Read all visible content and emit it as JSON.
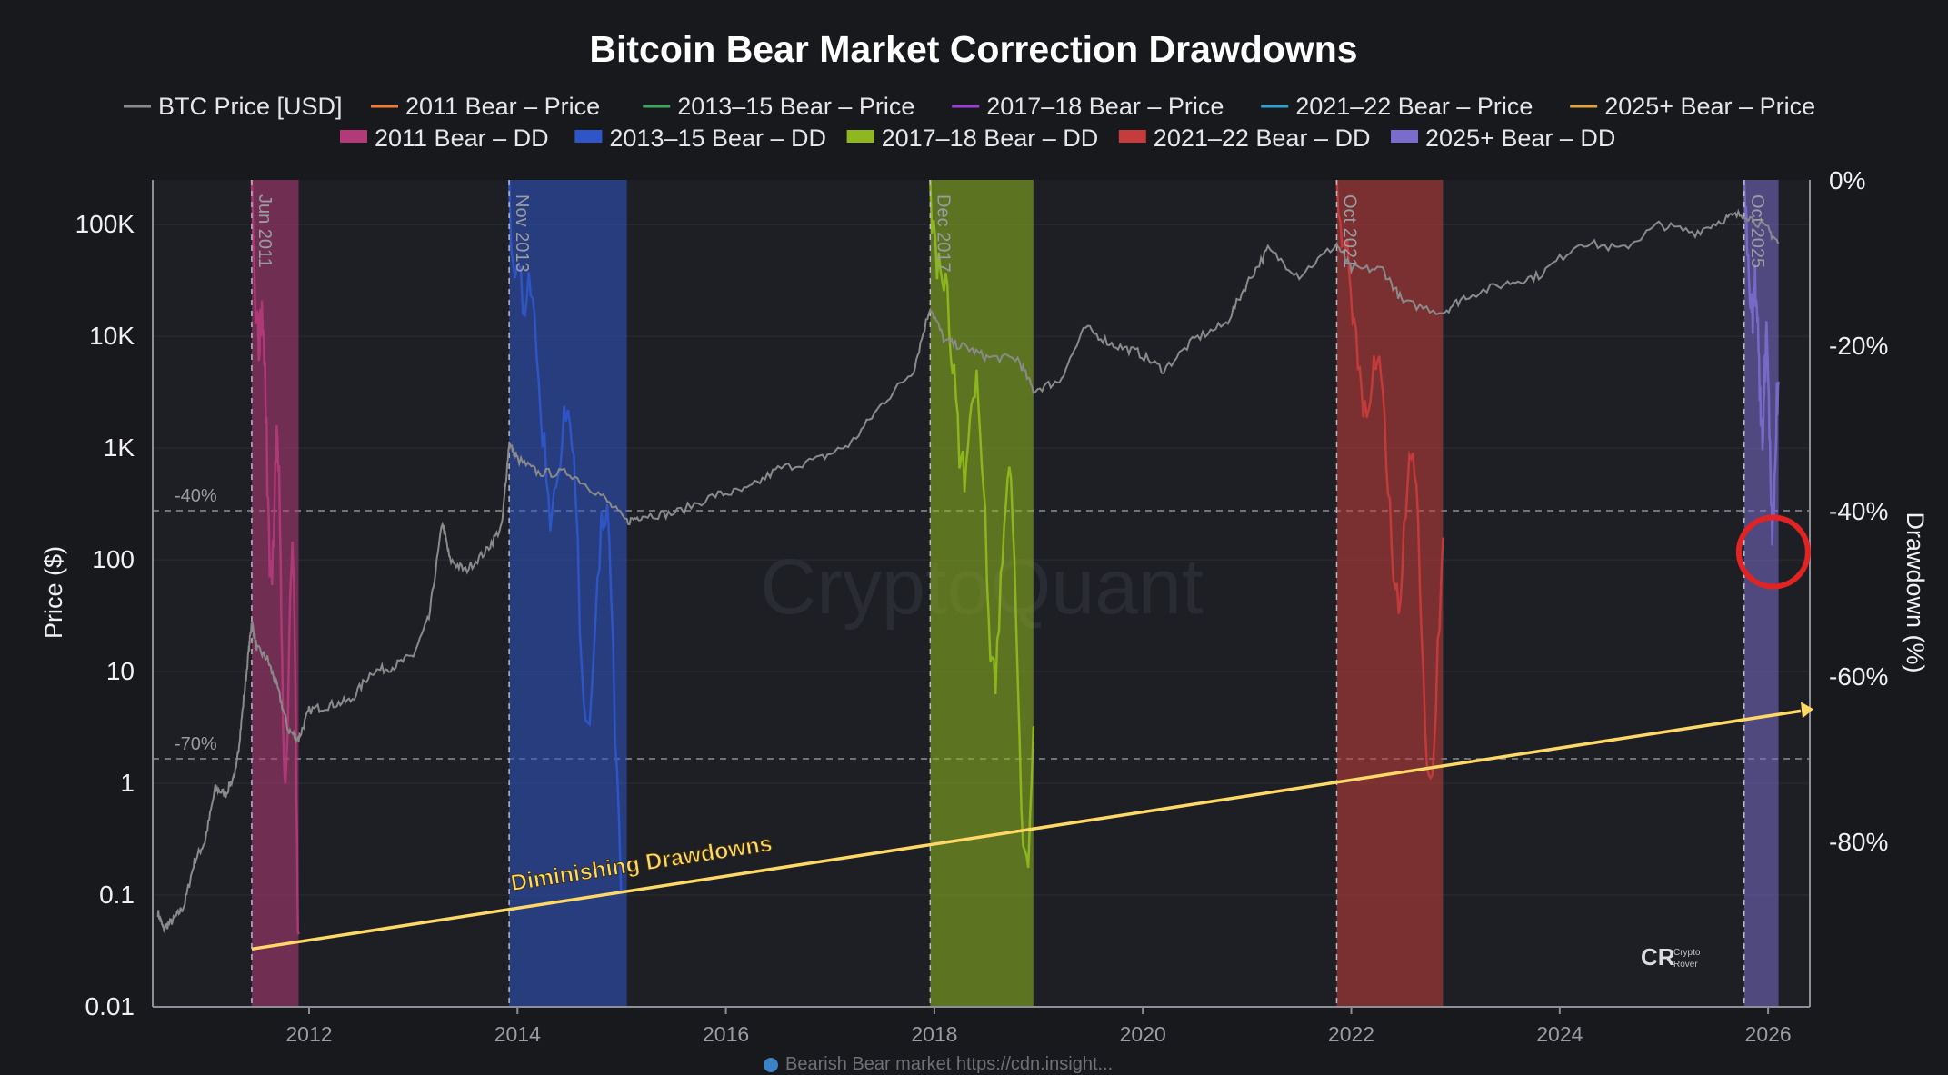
{
  "chart_data": {
    "type": "line",
    "title": "Bitcoin Bear Market Correction Drawdowns",
    "ylabel": "Price ($)",
    "y2label": "Drawdown (%)",
    "x_ticks": [
      "2012",
      "2014",
      "2016",
      "2018",
      "2020",
      "2022",
      "2024",
      "2026"
    ],
    "x_range": [
      2010.5,
      2026.4
    ],
    "y_ticks": [
      "0.01",
      "0.1",
      "1",
      "10",
      "100",
      "1K",
      "10K",
      "100K"
    ],
    "y_range_log10": [
      -2,
      5.4
    ],
    "y2_ticks": [
      "0%",
      "-20%",
      "-40%",
      "-60%",
      "-80%"
    ],
    "y2_range": [
      0,
      -100
    ],
    "reference_lines": [
      {
        "label": "-40%",
        "drawdown": -40
      },
      {
        "label": "-70%",
        "drawdown": -70
      }
    ],
    "legend": [
      {
        "label": "BTC Price [USD]",
        "color": "#8a8a8a",
        "kind": "line"
      },
      {
        "label": "2011 Bear – Price",
        "color": "#ef7d33",
        "kind": "line"
      },
      {
        "label": "2013–15 Bear – Price",
        "color": "#3fa65a",
        "kind": "line"
      },
      {
        "label": "2017–18 Bear – Price",
        "color": "#9b3fd6",
        "kind": "line"
      },
      {
        "label": "2021–22 Bear – Price",
        "color": "#2f9fd0",
        "kind": "line"
      },
      {
        "label": "2025+ Bear – Price",
        "color": "#e0a43b",
        "kind": "line"
      },
      {
        "label": "2011 Bear – DD",
        "color": "#b23a78",
        "kind": "area"
      },
      {
        "label": "2013–15 Bear – DD",
        "color": "#2f55c8",
        "kind": "area"
      },
      {
        "label": "2017–18 Bear – DD",
        "color": "#8fb81f",
        "kind": "area"
      },
      {
        "label": "2021–22 Bear – DD",
        "color": "#c63c3c",
        "kind": "area"
      },
      {
        "label": "2025+ Bear – DD",
        "color": "#7a6ccc",
        "kind": "area"
      }
    ],
    "bear_markets": [
      {
        "label": "Jun 2011",
        "start": 2011.45,
        "end": 2011.9,
        "max_drawdown": -93,
        "color": "#b23a78"
      },
      {
        "label": "Nov 2013",
        "start": 2013.92,
        "end": 2015.05,
        "max_drawdown": -86,
        "color": "#2f55c8"
      },
      {
        "label": "Dec 2017",
        "start": 2017.96,
        "end": 2018.95,
        "max_drawdown": -84,
        "color": "#8fb81f"
      },
      {
        "label": "Oct 2021",
        "start": 2021.86,
        "end": 2022.88,
        "max_drawdown": -77,
        "color": "#c63c3c"
      },
      {
        "label": "Oct 2025",
        "start": 2025.77,
        "end": 2026.1,
        "max_drawdown": -46,
        "color": "#7a6ccc"
      }
    ],
    "btc_price": [
      [
        2010.55,
        0.07
      ],
      [
        2010.6,
        0.05
      ],
      [
        2010.7,
        0.06
      ],
      [
        2010.8,
        0.08
      ],
      [
        2010.9,
        0.2
      ],
      [
        2011.0,
        0.3
      ],
      [
        2011.1,
        0.9
      ],
      [
        2011.2,
        0.8
      ],
      [
        2011.3,
        1.3
      ],
      [
        2011.35,
        3.5
      ],
      [
        2011.42,
        15
      ],
      [
        2011.45,
        28
      ],
      [
        2011.5,
        16
      ],
      [
        2011.6,
        13
      ],
      [
        2011.7,
        7
      ],
      [
        2011.8,
        3
      ],
      [
        2011.9,
        2.5
      ],
      [
        2012.0,
        4.5
      ],
      [
        2012.2,
        5
      ],
      [
        2012.4,
        5.5
      ],
      [
        2012.6,
        10
      ],
      [
        2012.8,
        11
      ],
      [
        2013.0,
        14
      ],
      [
        2013.15,
        30
      ],
      [
        2013.28,
        220
      ],
      [
        2013.35,
        100
      ],
      [
        2013.5,
        80
      ],
      [
        2013.7,
        120
      ],
      [
        2013.85,
        200
      ],
      [
        2013.92,
        1100
      ],
      [
        2014.0,
        800
      ],
      [
        2014.2,
        600
      ],
      [
        2014.5,
        600
      ],
      [
        2014.8,
        380
      ],
      [
        2015.05,
        220
      ],
      [
        2015.2,
        250
      ],
      [
        2015.5,
        260
      ],
      [
        2015.9,
        380
      ],
      [
        2016.2,
        420
      ],
      [
        2016.5,
        650
      ],
      [
        2016.9,
        800
      ],
      [
        2017.2,
        1100
      ],
      [
        2017.5,
        2500
      ],
      [
        2017.8,
        5000
      ],
      [
        2017.96,
        18500
      ],
      [
        2018.1,
        9000
      ],
      [
        2018.3,
        8000
      ],
      [
        2018.5,
        6500
      ],
      [
        2018.8,
        6300
      ],
      [
        2018.95,
        3300
      ],
      [
        2019.2,
        4000
      ],
      [
        2019.45,
        12000
      ],
      [
        2019.7,
        8500
      ],
      [
        2019.95,
        7200
      ],
      [
        2020.2,
        5000
      ],
      [
        2020.5,
        9500
      ],
      [
        2020.8,
        13000
      ],
      [
        2021.0,
        30000
      ],
      [
        2021.2,
        60000
      ],
      [
        2021.5,
        35000
      ],
      [
        2021.86,
        67000
      ],
      [
        2022.0,
        40000
      ],
      [
        2022.3,
        40000
      ],
      [
        2022.5,
        20000
      ],
      [
        2022.88,
        16500
      ],
      [
        2023.1,
        23000
      ],
      [
        2023.5,
        30000
      ],
      [
        2023.8,
        35000
      ],
      [
        2024.2,
        70000
      ],
      [
        2024.6,
        60000
      ],
      [
        2024.95,
        100000
      ],
      [
        2025.3,
        85000
      ],
      [
        2025.6,
        115000
      ],
      [
        2025.77,
        125000
      ],
      [
        2026.0,
        90000
      ],
      [
        2026.1,
        68000
      ]
    ],
    "trend_line": {
      "label": "Diminishing Drawdowns",
      "start": [
        2011.45,
        -93
      ],
      "end": [
        2026.4,
        -64
      ]
    },
    "highlight": {
      "x": 2026.05,
      "drawdown": -45
    }
  },
  "branding": {
    "watermark": "CryptoQuant",
    "logo_text": "CR",
    "logo_caption_1": "Crypto",
    "logo_caption_2": "Rover"
  },
  "footnote": "Bearish Bear market https://cdn.insight..."
}
